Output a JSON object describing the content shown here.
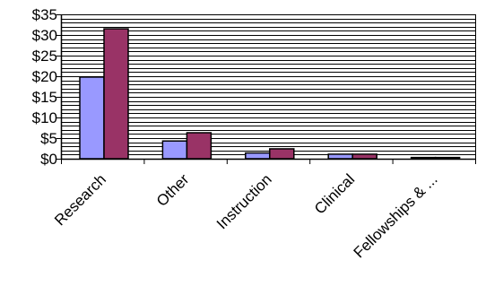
{
  "chart_data": {
    "type": "bar",
    "categories": [
      "Research",
      "Other",
      "Instruction",
      "Clinical",
      "Fellowships & ..."
    ],
    "series": [
      {
        "values": [
          19.8,
          4.3,
          1.4,
          1.1,
          0.3
        ],
        "color": "#9999FF"
      },
      {
        "values": [
          31.5,
          6.3,
          2.4,
          1.1,
          0.3
        ],
        "color": "#993366"
      }
    ],
    "ylim": [
      0,
      35
    ],
    "y_ticks": [
      0,
      5,
      10,
      15,
      20,
      25,
      30,
      35
    ],
    "y_tick_labels": [
      "$0",
      "$5",
      "$10",
      "$15",
      "$20",
      "$25",
      "$30",
      "$35"
    ],
    "grid": true,
    "gridline_step": 1,
    "legend": "none",
    "xlabel": "",
    "ylabel": "",
    "title": ""
  }
}
